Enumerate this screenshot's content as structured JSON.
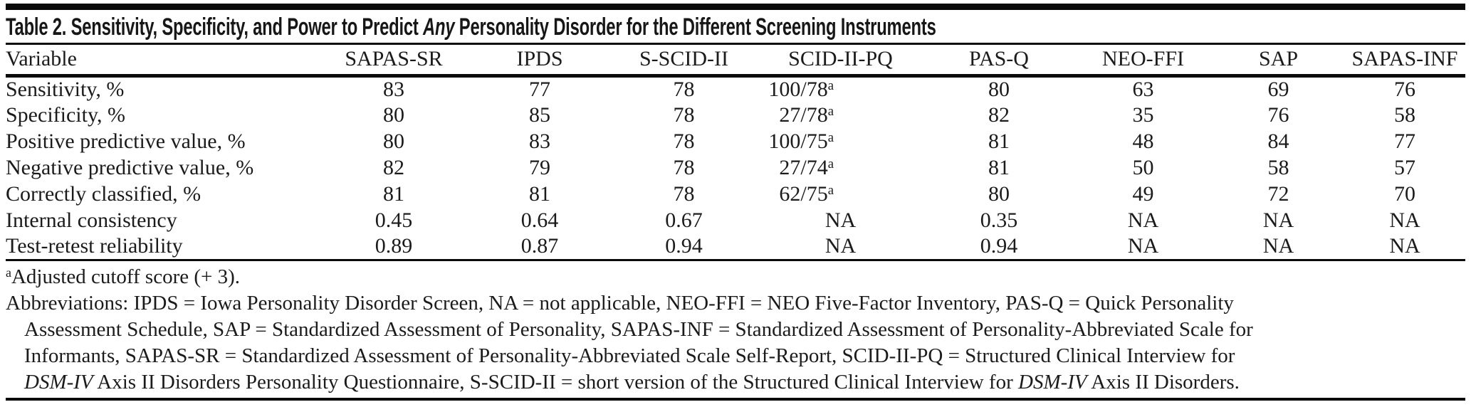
{
  "colors": {
    "background": "#ffffff",
    "text": "#1b1b1b",
    "rule": "#0a0a0a"
  },
  "table": {
    "title": {
      "segments": [
        {
          "text": "Table 2. Sensitivity, Specificity, and Power to Predict ",
          "italic": false
        },
        {
          "text": "Any",
          "italic": true
        },
        {
          "text": " Personality Disorder for the Different Screening Instruments",
          "italic": false
        }
      ]
    },
    "columns": [
      {
        "label": "Variable"
      },
      {
        "label": "SAPAS-SR"
      },
      {
        "label": "IPDS"
      },
      {
        "label": "S-SCID-II"
      },
      {
        "label": "SCID-II-PQ"
      },
      {
        "label": "PAS-Q"
      },
      {
        "label": "NEO-FFI"
      },
      {
        "label": "SAP"
      },
      {
        "label": "SAPAS-INF"
      }
    ],
    "rows": [
      {
        "label": "Sensitivity, %",
        "values": [
          {
            "text": "83"
          },
          {
            "text": "77"
          },
          {
            "text": "78"
          },
          {
            "text": "100/78",
            "sup": "a"
          },
          {
            "text": "80"
          },
          {
            "text": "63"
          },
          {
            "text": "69"
          },
          {
            "text": "76"
          }
        ]
      },
      {
        "label": "Specificity, %",
        "values": [
          {
            "text": "80"
          },
          {
            "text": "85"
          },
          {
            "text": "78"
          },
          {
            "text": "27/78",
            "sup": "a"
          },
          {
            "text": "82"
          },
          {
            "text": "35"
          },
          {
            "text": "76"
          },
          {
            "text": "58"
          }
        ]
      },
      {
        "label": "Positive predictive value, %",
        "values": [
          {
            "text": "80"
          },
          {
            "text": "83"
          },
          {
            "text": "78"
          },
          {
            "text": "100/75",
            "sup": "a"
          },
          {
            "text": "81"
          },
          {
            "text": "48"
          },
          {
            "text": "84"
          },
          {
            "text": "77"
          }
        ]
      },
      {
        "label": "Negative predictive value, %",
        "values": [
          {
            "text": "82"
          },
          {
            "text": "79"
          },
          {
            "text": "78"
          },
          {
            "text": "27/74",
            "sup": "a"
          },
          {
            "text": "81"
          },
          {
            "text": "50"
          },
          {
            "text": "58"
          },
          {
            "text": "57"
          }
        ]
      },
      {
        "label": "Correctly classified, %",
        "values": [
          {
            "text": "81"
          },
          {
            "text": "81"
          },
          {
            "text": "78"
          },
          {
            "text": "62/75",
            "sup": "a"
          },
          {
            "text": "80"
          },
          {
            "text": "49"
          },
          {
            "text": "72"
          },
          {
            "text": "70"
          }
        ]
      },
      {
        "label": "Internal consistency",
        "values": [
          {
            "text": "0.45"
          },
          {
            "text": "0.64"
          },
          {
            "text": "0.67"
          },
          {
            "text": "NA"
          },
          {
            "text": "0.35"
          },
          {
            "text": "NA"
          },
          {
            "text": "NA"
          },
          {
            "text": "NA"
          }
        ]
      },
      {
        "label": "Test-retest reliability",
        "values": [
          {
            "text": "0.89"
          },
          {
            "text": "0.87"
          },
          {
            "text": "0.94"
          },
          {
            "text": "NA"
          },
          {
            "text": "0.94"
          },
          {
            "text": "NA"
          },
          {
            "text": "NA"
          },
          {
            "text": "NA"
          }
        ]
      }
    ],
    "footnotes": {
      "cutoff_note": {
        "marker": "a",
        "text": "Adjusted cutoff score (+ 3)."
      },
      "abbreviations_lines": [
        {
          "segments": [
            {
              "text": "Abbreviations: IPDS = Iowa Personality Disorder Screen, NA = not applicable, NEO-FFI = NEO Five-Factor Inventory, PAS-Q = Quick Personality",
              "italic": false
            }
          ]
        },
        {
          "segments": [
            {
              "text": "Assessment Schedule, SAP = Standardized Assessment of Personality, SAPAS-INF = Standardized Assessment of Personality-Abbreviated Scale for",
              "italic": false
            }
          ]
        },
        {
          "segments": [
            {
              "text": "Informants, SAPAS-SR = Standardized Assessment of Personality-Abbreviated Scale Self-Report, SCID-II-PQ = Structured Clinical Interview for",
              "italic": false
            }
          ]
        },
        {
          "segments": [
            {
              "text": "DSM-IV",
              "italic": true
            },
            {
              "text": " Axis II Disorders Personality Questionnaire, S-SCID-II = short version of the Structured Clinical Interview for ",
              "italic": false
            },
            {
              "text": "DSM-IV",
              "italic": true
            },
            {
              "text": " Axis II Disorders.",
              "italic": false
            }
          ]
        }
      ]
    }
  }
}
